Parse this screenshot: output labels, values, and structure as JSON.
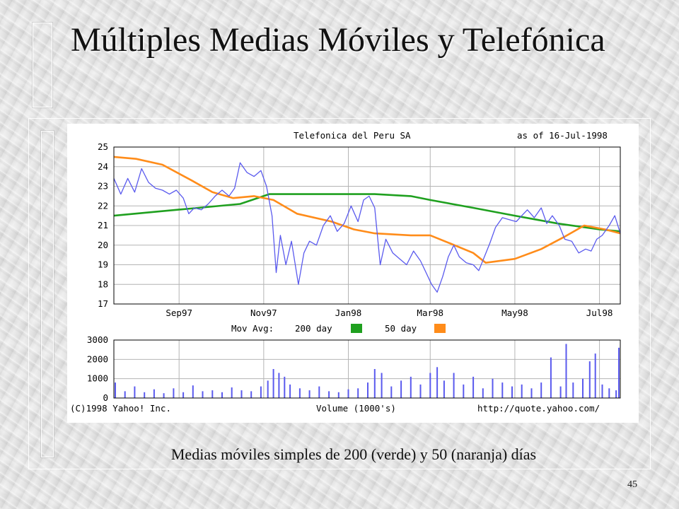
{
  "slide": {
    "title": "Múltiples Medias Móviles y Telefónica",
    "caption": "Medias móviles simples de 200 (verde) y 50 (naranja) días",
    "page_number": "45"
  },
  "chart_data": [
    {
      "type": "line",
      "title": "Telefonica del Peru SA",
      "subtitle": "as of 16-Jul-1998",
      "x_tick_labels": [
        "Sep97",
        "Nov97",
        "Jan98",
        "Mar98",
        "May98",
        "Jul98"
      ],
      "x_tick_dates": [
        "1997-09-01",
        "1997-11-01",
        "1998-01-01",
        "1998-03-01",
        "1998-05-01",
        "1998-07-01"
      ],
      "xlim": [
        "1997-07-16",
        "1998-07-16"
      ],
      "ylim": [
        17,
        25
      ],
      "y_ticks": [
        17,
        18,
        19,
        20,
        21,
        22,
        23,
        24,
        25
      ],
      "grid": true,
      "legend": {
        "label": "Mov Avg:",
        "entries": [
          {
            "name": "200 day",
            "color": "#1fa01f"
          },
          {
            "name": "50 day",
            "color": "#ff8c1a"
          }
        ]
      },
      "series": [
        {
          "role": "price",
          "color": "#5a5aee",
          "points": [
            [
              "1997-07-16",
              23.4
            ],
            [
              "1997-07-21",
              22.6
            ],
            [
              "1997-07-26",
              23.4
            ],
            [
              "1997-07-31",
              22.7
            ],
            [
              "1997-08-05",
              23.9
            ],
            [
              "1997-08-10",
              23.2
            ],
            [
              "1997-08-15",
              22.9
            ],
            [
              "1997-08-20",
              22.8
            ],
            [
              "1997-08-25",
              22.6
            ],
            [
              "1997-08-30",
              22.8
            ],
            [
              "1997-09-04",
              22.4
            ],
            [
              "1997-09-08",
              21.6
            ],
            [
              "1997-09-12",
              21.9
            ],
            [
              "1997-09-17",
              21.8
            ],
            [
              "1997-09-22",
              22.1
            ],
            [
              "1997-09-27",
              22.5
            ],
            [
              "1997-10-02",
              22.8
            ],
            [
              "1997-10-07",
              22.5
            ],
            [
              "1997-10-11",
              22.9
            ],
            [
              "1997-10-15",
              24.2
            ],
            [
              "1997-10-20",
              23.7
            ],
            [
              "1997-10-25",
              23.5
            ],
            [
              "1997-10-30",
              23.8
            ],
            [
              "1997-11-03",
              23.0
            ],
            [
              "1997-11-07",
              21.5
            ],
            [
              "1997-11-10",
              18.6
            ],
            [
              "1997-11-13",
              20.5
            ],
            [
              "1997-11-17",
              19.0
            ],
            [
              "1997-11-21",
              20.2
            ],
            [
              "1997-11-26",
              18.0
            ],
            [
              "1997-11-30",
              19.6
            ],
            [
              "1997-12-04",
              20.2
            ],
            [
              "1997-12-09",
              20.0
            ],
            [
              "1997-12-14",
              21.0
            ],
            [
              "1997-12-19",
              21.5
            ],
            [
              "1997-12-24",
              20.7
            ],
            [
              "1997-12-29",
              21.1
            ],
            [
              "1998-01-03",
              22.0
            ],
            [
              "1998-01-08",
              21.2
            ],
            [
              "1998-01-12",
              22.3
            ],
            [
              "1998-01-16",
              22.5
            ],
            [
              "1998-01-20",
              21.9
            ],
            [
              "1998-01-24",
              19.0
            ],
            [
              "1998-01-28",
              20.3
            ],
            [
              "1998-02-02",
              19.6
            ],
            [
              "1998-02-07",
              19.3
            ],
            [
              "1998-02-12",
              19.0
            ],
            [
              "1998-02-17",
              19.7
            ],
            [
              "1998-02-22",
              19.2
            ],
            [
              "1998-02-26",
              18.6
            ],
            [
              "1998-03-02",
              18.0
            ],
            [
              "1998-03-06",
              17.6
            ],
            [
              "1998-03-10",
              18.4
            ],
            [
              "1998-03-14",
              19.4
            ],
            [
              "1998-03-18",
              20.0
            ],
            [
              "1998-03-22",
              19.4
            ],
            [
              "1998-03-27",
              19.1
            ],
            [
              "1998-04-01",
              19.0
            ],
            [
              "1998-04-05",
              18.7
            ],
            [
              "1998-04-09",
              19.4
            ],
            [
              "1998-04-13",
              20.1
            ],
            [
              "1998-04-17",
              20.9
            ],
            [
              "1998-04-22",
              21.4
            ],
            [
              "1998-04-27",
              21.3
            ],
            [
              "1998-05-02",
              21.2
            ],
            [
              "1998-05-06",
              21.5
            ],
            [
              "1998-05-10",
              21.8
            ],
            [
              "1998-05-15",
              21.4
            ],
            [
              "1998-05-20",
              21.9
            ],
            [
              "1998-05-24",
              21.1
            ],
            [
              "1998-05-28",
              21.5
            ],
            [
              "1998-06-02",
              21.0
            ],
            [
              "1998-06-06",
              20.3
            ],
            [
              "1998-06-11",
              20.2
            ],
            [
              "1998-06-16",
              19.6
            ],
            [
              "1998-06-21",
              19.8
            ],
            [
              "1998-06-25",
              19.7
            ],
            [
              "1998-06-29",
              20.3
            ],
            [
              "1998-07-03",
              20.5
            ],
            [
              "1998-07-08",
              21.0
            ],
            [
              "1998-07-12",
              21.5
            ],
            [
              "1998-07-16",
              20.6
            ]
          ]
        },
        {
          "name": "200 day",
          "color": "#1fa01f",
          "points": [
            [
              "1997-07-16",
              21.5
            ],
            [
              "1997-08-15",
              21.7
            ],
            [
              "1997-09-15",
              21.9
            ],
            [
              "1997-10-15",
              22.1
            ],
            [
              "1997-11-05",
              22.6
            ],
            [
              "1997-12-01",
              22.6
            ],
            [
              "1998-01-01",
              22.6
            ],
            [
              "1998-01-20",
              22.6
            ],
            [
              "1998-02-15",
              22.5
            ],
            [
              "1998-03-01",
              22.3
            ],
            [
              "1998-04-01",
              21.9
            ],
            [
              "1998-05-01",
              21.5
            ],
            [
              "1998-06-01",
              21.1
            ],
            [
              "1998-07-01",
              20.8
            ],
            [
              "1998-07-16",
              20.7
            ]
          ]
        },
        {
          "name": "50 day",
          "color": "#ff8c1a",
          "points": [
            [
              "1997-07-16",
              24.5
            ],
            [
              "1997-08-01",
              24.4
            ],
            [
              "1997-08-20",
              24.1
            ],
            [
              "1997-09-10",
              23.3
            ],
            [
              "1997-09-25",
              22.7
            ],
            [
              "1997-10-10",
              22.4
            ],
            [
              "1997-10-25",
              22.5
            ],
            [
              "1997-11-08",
              22.3
            ],
            [
              "1997-11-25",
              21.6
            ],
            [
              "1997-12-20",
              21.2
            ],
            [
              "1998-01-05",
              20.8
            ],
            [
              "1998-01-20",
              20.6
            ],
            [
              "1998-02-15",
              20.5
            ],
            [
              "1998-03-01",
              20.5
            ],
            [
              "1998-03-15",
              20.1
            ],
            [
              "1998-04-01",
              19.6
            ],
            [
              "1998-04-10",
              19.1
            ],
            [
              "1998-05-01",
              19.3
            ],
            [
              "1998-05-20",
              19.8
            ],
            [
              "1998-06-05",
              20.4
            ],
            [
              "1998-06-20",
              21.0
            ],
            [
              "1998-07-05",
              20.8
            ],
            [
              "1998-07-16",
              20.6
            ]
          ]
        }
      ]
    },
    {
      "type": "bar",
      "xlabel": "Volume (1000's)",
      "ylim": [
        0,
        3000
      ],
      "y_ticks": [
        0,
        1000,
        2000,
        3000
      ],
      "x_tick_labels": [
        "Sep97",
        "Nov97",
        "Jan98",
        "Mar98",
        "May98",
        "Jul98"
      ],
      "xlim": [
        "1997-07-16",
        "1998-07-16"
      ],
      "grid": true,
      "color": "#5a5aee",
      "bars": [
        [
          "1997-07-17",
          800
        ],
        [
          "1997-07-24",
          350
        ],
        [
          "1997-07-31",
          600
        ],
        [
          "1997-08-07",
          300
        ],
        [
          "1997-08-14",
          450
        ],
        [
          "1997-08-21",
          250
        ],
        [
          "1997-08-28",
          500
        ],
        [
          "1997-09-04",
          300
        ],
        [
          "1997-09-11",
          650
        ],
        [
          "1997-09-18",
          350
        ],
        [
          "1997-09-25",
          400
        ],
        [
          "1997-10-02",
          300
        ],
        [
          "1997-10-09",
          550
        ],
        [
          "1997-10-16",
          400
        ],
        [
          "1997-10-23",
          350
        ],
        [
          "1997-10-30",
          600
        ],
        [
          "1997-11-04",
          900
        ],
        [
          "1997-11-08",
          1500
        ],
        [
          "1997-11-12",
          1300
        ],
        [
          "1997-11-16",
          1100
        ],
        [
          "1997-11-20",
          700
        ],
        [
          "1997-11-27",
          500
        ],
        [
          "1997-12-04",
          400
        ],
        [
          "1997-12-11",
          600
        ],
        [
          "1997-12-18",
          350
        ],
        [
          "1997-12-25",
          300
        ],
        [
          "1998-01-01",
          450
        ],
        [
          "1998-01-08",
          500
        ],
        [
          "1998-01-15",
          800
        ],
        [
          "1998-01-20",
          1500
        ],
        [
          "1998-01-25",
          1300
        ],
        [
          "1998-02-01",
          600
        ],
        [
          "1998-02-08",
          900
        ],
        [
          "1998-02-15",
          1100
        ],
        [
          "1998-02-22",
          700
        ],
        [
          "1998-03-01",
          1300
        ],
        [
          "1998-03-06",
          1600
        ],
        [
          "1998-03-11",
          900
        ],
        [
          "1998-03-18",
          1300
        ],
        [
          "1998-03-25",
          700
        ],
        [
          "1998-04-01",
          1100
        ],
        [
          "1998-04-08",
          500
        ],
        [
          "1998-04-15",
          1000
        ],
        [
          "1998-04-22",
          800
        ],
        [
          "1998-04-29",
          600
        ],
        [
          "1998-05-06",
          700
        ],
        [
          "1998-05-13",
          500
        ],
        [
          "1998-05-20",
          800
        ],
        [
          "1998-05-27",
          2100
        ],
        [
          "1998-06-03",
          600
        ],
        [
          "1998-06-07",
          2800
        ],
        [
          "1998-06-12",
          800
        ],
        [
          "1998-06-19",
          1000
        ],
        [
          "1998-06-24",
          1900
        ],
        [
          "1998-06-28",
          2300
        ],
        [
          "1998-07-03",
          700
        ],
        [
          "1998-07-08",
          500
        ],
        [
          "1998-07-13",
          400
        ],
        [
          "1998-07-15",
          2600
        ]
      ]
    }
  ],
  "chart_footer": {
    "copyright": "(C)1998 Yahoo! Inc.",
    "source": "http://quote.yahoo.com/"
  }
}
